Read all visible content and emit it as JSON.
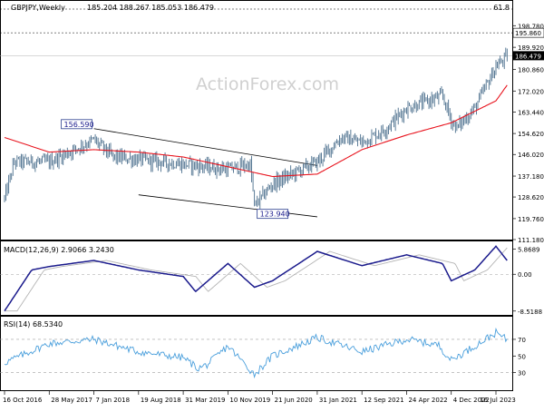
{
  "chart_data": {
    "type": "candlestick",
    "title": "GBPJPY,Weekly",
    "ohlc_text": "185.204 188.267 185.053 186.479",
    "fib_text": "61.8",
    "watermark": "ActionForex.com",
    "x_dates": [
      "16 Oct 2016",
      "28 May 2017",
      "7 Jan 2018",
      "19 Aug 2018",
      "31 Mar 2019",
      "10 Nov 2019",
      "21 Jun 2020",
      "31 Jan 2021",
      "12 Sep 2021",
      "24 Apr 2022",
      "4 Dec 2022",
      "16 Jul 2023"
    ],
    "price_axis": {
      "min": 111.18,
      "max": 202.6,
      "ticks": [
        "198.780",
        "189.920",
        "180.860",
        "172.020",
        "163.440",
        "154.620",
        "146.020",
        "137.180",
        "128.620",
        "119.760",
        "111.180"
      ]
    },
    "current_price": {
      "value": 186.479,
      "label": "186.479"
    },
    "hline": {
      "value": 195.86,
      "label": "195.860"
    },
    "annotations": [
      {
        "text": "156.590",
        "value": 156.59,
        "at": "7 Jan 2018"
      },
      {
        "text": "123.940",
        "value": 123.94,
        "at": "21 Jun 2020"
      }
    ],
    "channel": {
      "upper": [
        [
          "7 Jan 2018",
          156.6
        ],
        [
          "31 Jan 2021",
          141.5
        ]
      ],
      "lower": [
        [
          "19 Aug 2018",
          129.5
        ],
        [
          "31 Jan 2021",
          120.5
        ]
      ]
    },
    "price_anchors": [
      [
        "16 Oct 2016",
        128
      ],
      [
        "4 Dec 2016",
        143
      ],
      [
        "28 May 2017",
        143
      ],
      [
        "7 Jan 2018",
        152
      ],
      [
        "14 Apr 2018",
        145
      ],
      [
        "19 Aug 2018",
        144
      ],
      [
        "31 Mar 2019",
        142
      ],
      [
        "10 Nov 2019",
        140
      ],
      [
        "1 Mar 2020",
        142
      ],
      [
        "22 Mar 2020",
        125
      ],
      [
        "21 Jun 2020",
        134
      ],
      [
        "31 Jan 2021",
        143
      ],
      [
        "1 Jun 2021",
        153
      ],
      [
        "12 Sep 2021",
        151
      ],
      [
        "1 Jan 2022",
        156
      ],
      [
        "24 Apr 2022",
        165
      ],
      [
        "21 Oct 2022",
        170
      ],
      [
        "4 Dec 2022",
        160
      ],
      [
        "1 Jan 2023",
        157
      ],
      [
        "1 Apr 2023",
        165
      ],
      [
        "16 Jul 2023",
        182
      ],
      [
        "15 Sep 2023",
        186.5
      ]
    ],
    "ma_anchors": [
      [
        "16 Oct 2016",
        153
      ],
      [
        "28 May 2017",
        147
      ],
      [
        "7 Jan 2018",
        148
      ],
      [
        "19 Aug 2018",
        147
      ],
      [
        "31 Mar 2019",
        145
      ],
      [
        "10 Nov 2019",
        141
      ],
      [
        "21 Jun 2020",
        137
      ],
      [
        "31 Jan 2021",
        138
      ],
      [
        "12 Sep 2021",
        148
      ],
      [
        "24 Apr 2022",
        154
      ],
      [
        "4 Dec 2022",
        159
      ],
      [
        "16 Jul 2023",
        168
      ],
      [
        "15 Sep 2023",
        175
      ]
    ],
    "macd": {
      "label": "MACD(12,26,9) 2.9066 3.2430",
      "ticks": [
        "5.8689",
        "0.00",
        "-8.5188"
      ],
      "range": [
        -9.2,
        7.2
      ],
      "anchors": [
        [
          "16 Oct 2016",
          -8.5
        ],
        [
          "1 Mar 2017",
          1
        ],
        [
          "28 May 2017",
          1.8
        ],
        [
          "7 Jan 2018",
          3.2
        ],
        [
          "19 Aug 2018",
          1
        ],
        [
          "31 Mar 2019",
          -0.5
        ],
        [
          "1 Jun 2019",
          -4
        ],
        [
          "10 Nov 2019",
          2.5
        ],
        [
          "22 Mar 2020",
          -3
        ],
        [
          "21 Jun 2020",
          -1.5
        ],
        [
          "31 Jan 2021",
          5.3
        ],
        [
          "12 Sep 2021",
          2
        ],
        [
          "24 Apr 2022",
          4.5
        ],
        [
          "21 Oct 2022",
          2.5
        ],
        [
          "4 Dec 2022",
          -1.5
        ],
        [
          "1 Apr 2023",
          1
        ],
        [
          "16 Jul 2023",
          6.5
        ],
        [
          "15 Sep 2023",
          2.9
        ]
      ]
    },
    "rsi": {
      "label": "RSI(14) 68.5340",
      "ticks": [
        "70",
        "50",
        "30"
      ],
      "range": [
        10,
        95
      ],
      "anchors": [
        [
          "16 Oct 2016",
          42
        ],
        [
          "28 May 2017",
          65
        ],
        [
          "7 Jan 2018",
          70
        ],
        [
          "19 Aug 2018",
          55
        ],
        [
          "31 Mar 2019",
          48
        ],
        [
          "15 Jun 2019",
          35
        ],
        [
          "1 Aug 2019",
          40
        ],
        [
          "10 Nov 2019",
          62
        ],
        [
          "22 Mar 2020",
          28
        ],
        [
          "21 Jun 2020",
          50
        ],
        [
          "31 Jan 2021",
          72
        ],
        [
          "12 Sep 2021",
          55
        ],
        [
          "24 Apr 2022",
          70
        ],
        [
          "1 Oct 2022",
          63
        ],
        [
          "4 Dec 2022",
          45
        ],
        [
          "1 Apr 2023",
          62
        ],
        [
          "16 Jul 2023",
          78
        ],
        [
          "15 Sep 2023",
          68.5
        ]
      ]
    },
    "colors": {
      "price": "#4a6e8c",
      "ma": "#e8141e",
      "macd": "#1a1a8c",
      "signal": "#b4b4b4",
      "rsi": "#4a9fdc",
      "channel": "#000000",
      "current_bg": "#000000",
      "label_bg": "#ffffff"
    }
  }
}
